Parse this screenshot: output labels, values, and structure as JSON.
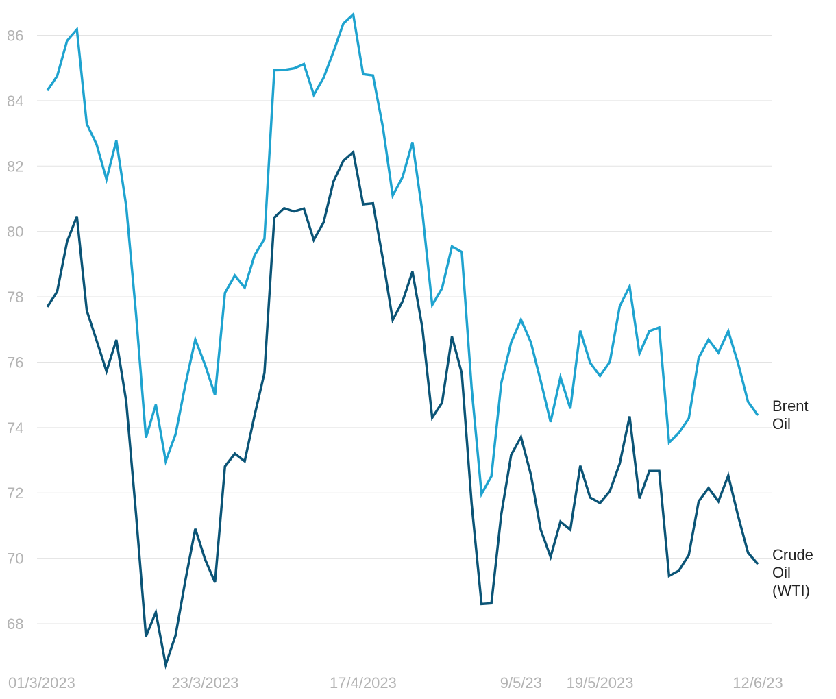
{
  "chart_data": {
    "type": "line",
    "title": "",
    "xlabel": "",
    "ylabel": "",
    "ylim": [
      66.8,
      86.8
    ],
    "grid": "horizontal",
    "y_ticks": [
      68,
      70,
      72,
      74,
      76,
      78,
      80,
      82,
      84,
      86
    ],
    "x_tick_labels": [
      {
        "label": "01/3/2023",
        "index": 0
      },
      {
        "label": "23/3/2023",
        "index": 16
      },
      {
        "label": "17/4/2023",
        "index": 32
      },
      {
        "label": "9/5/23",
        "index": 48
      },
      {
        "label": "19/5/2023",
        "index": 56
      },
      {
        "label": "12/6/23",
        "index": 72
      }
    ],
    "series": [
      {
        "name": "Brent Oil",
        "label_lines": [
          "Brent",
          "Oil"
        ],
        "color": "#1fa3cf",
        "values": [
          84.31,
          84.75,
          85.83,
          86.18,
          83.29,
          82.66,
          81.59,
          82.78,
          80.77,
          77.45,
          73.69,
          74.7,
          72.97,
          73.79,
          75.32,
          76.69,
          75.91,
          74.99,
          78.12,
          78.65,
          78.28,
          79.27,
          79.77,
          84.93,
          84.94,
          84.99,
          85.12,
          84.18,
          84.7,
          85.5,
          86.36,
          86.64,
          84.81,
          84.77,
          83.2,
          81.1,
          81.66,
          82.73,
          80.6,
          77.75,
          78.26,
          79.54,
          79.37,
          75.2,
          71.97,
          72.51,
          75.36,
          76.6,
          77.3,
          76.61,
          75.42,
          74.17,
          75.54,
          74.58,
          76.96,
          75.98,
          75.58,
          76.01,
          77.71,
          78.32,
          76.26,
          76.95,
          77.06,
          73.54,
          73.84,
          74.28,
          76.13,
          76.69,
          76.29,
          76.95,
          75.96,
          74.79,
          74.37
        ]
      },
      {
        "name": "Crude Oil (WTI)",
        "label_lines": [
          "Crude",
          "Oil",
          "(WTI)"
        ],
        "color": "#0b5476",
        "values": [
          77.69,
          78.16,
          79.68,
          80.46,
          77.58,
          76.66,
          75.72,
          76.68,
          74.8,
          71.33,
          67.61,
          68.35,
          66.74,
          67.64,
          69.33,
          70.9,
          69.96,
          69.26,
          72.81,
          73.2,
          72.97,
          74.37,
          75.67,
          80.42,
          80.71,
          80.61,
          80.7,
          79.74,
          80.28,
          81.53,
          82.16,
          82.43,
          80.83,
          80.86,
          79.16,
          77.29,
          77.86,
          78.77,
          77.06,
          74.3,
          74.76,
          76.78,
          75.66,
          71.66,
          68.6,
          68.62,
          71.34,
          73.16,
          73.71,
          72.56,
          70.87,
          70.04,
          71.12,
          70.87,
          72.83,
          71.86,
          71.69,
          72.05,
          72.9,
          74.34,
          71.83,
          72.67,
          72.67,
          69.46,
          69.62,
          70.1,
          71.74,
          72.15,
          71.74,
          72.53,
          71.29,
          70.17,
          69.82
        ]
      }
    ]
  }
}
